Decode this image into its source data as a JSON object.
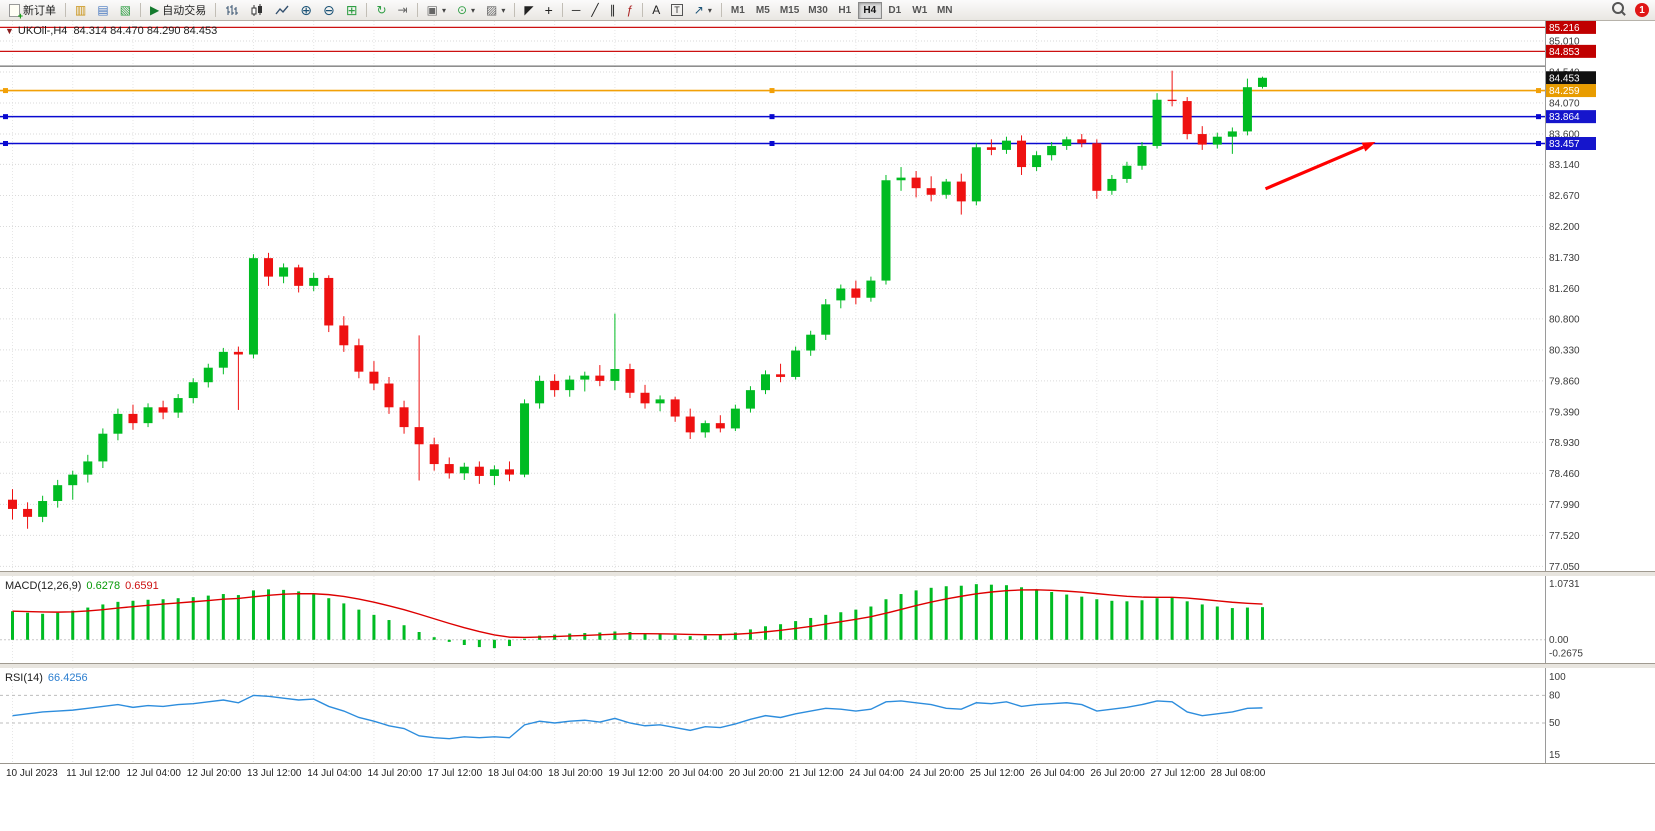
{
  "toolbar": {
    "new_order_label": "新订单",
    "auto_trading_label": "自动交易",
    "timeframes": [
      "M1",
      "M5",
      "M15",
      "M30",
      "H1",
      "H4",
      "D1",
      "W1",
      "MN"
    ],
    "active_timeframe": "H4",
    "notification_count": "1",
    "icons": {
      "one_click": "▼",
      "market_watch": "▥",
      "data_window": "▤",
      "navigator": "▧",
      "play": "▶",
      "zoom_in": "⊕",
      "zoom_out": "⊖",
      "tile_windows": "⊞",
      "auto_scroll": "↻",
      "chart_shift": "⇥",
      "new_chart": "▣",
      "periods": "⊙",
      "templates": "▨",
      "caret": "▾",
      "cursor": "◤",
      "crosshair": "+",
      "hline": "─",
      "trendline": "╱",
      "channel": "∥",
      "fibonacci": "ƒ",
      "text": "A",
      "label": "T",
      "arrows": "↗"
    }
  },
  "chart": {
    "symbol_label": "UKOil-,H4",
    "ohlc": "84.314 84.470 84.290 84.453"
  },
  "chart_data": [
    {
      "type": "candlestick",
      "title": "UKOil-,H4",
      "bull_color": "#00bb22",
      "bear_color": "#ee1111",
      "current_price": 84.453,
      "x_labels": [
        "10 Jul 2023",
        "11 Jul 12:00",
        "12 Jul 04:00",
        "12 Jul 20:00",
        "13 Jul 12:00",
        "14 Jul 04:00",
        "14 Jul 20:00",
        "17 Jul 12:00",
        "18 Jul 04:00",
        "18 Jul 20:00",
        "19 Jul 12:00",
        "20 Jul 04:00",
        "20 Jul 20:00",
        "21 Jul 12:00",
        "24 Jul 04:00",
        "24 Jul 20:00",
        "25 Jul 12:00",
        "26 Jul 04:00",
        "26 Jul 20:00",
        "27 Jul 12:00",
        "28 Jul 08:00"
      ],
      "y_ticks": [
        "85.010",
        "84.540",
        "84.070",
        "83.600",
        "83.140",
        "82.670",
        "82.200",
        "81.730",
        "81.260",
        "80.800",
        "80.330",
        "79.860",
        "79.390",
        "78.930",
        "78.460",
        "77.990",
        "77.520",
        "77.050"
      ],
      "hlines": [
        {
          "price": 85.216,
          "color": "#cc1111",
          "width": 1.3,
          "handles": false
        },
        {
          "price": 84.853,
          "color": "#cc1111",
          "width": 1.3,
          "handles": false
        },
        {
          "price": 84.63,
          "color": "#4a4a4a",
          "width": 1,
          "handles": false
        },
        {
          "price": 84.259,
          "color": "#f2a007",
          "width": 1.6,
          "handles": true
        },
        {
          "price": 83.864,
          "color": "#0a0ad0",
          "width": 1.6,
          "handles": true
        },
        {
          "price": 83.457,
          "color": "#0a0ad0",
          "width": 1.6,
          "handles": true
        }
      ],
      "tags": [
        {
          "text": "85.216",
          "price": 85.216,
          "color": "#c00000"
        },
        {
          "text": "84.853",
          "price": 84.853,
          "color": "#c00000"
        },
        {
          "text": "84.453",
          "price": 84.453,
          "color": "#101010"
        },
        {
          "text": "84.259",
          "price": 84.259,
          "color": "#e89c00"
        },
        {
          "text": "83.864",
          "price": 83.864,
          "color": "#1515cc"
        },
        {
          "text": "83.457",
          "price": 83.457,
          "color": "#1515cc"
        }
      ],
      "arrow": {
        "color": "#ff0000",
        "x_index": [
          83.5,
          90.8
        ],
        "price": [
          82.77,
          83.48
        ]
      },
      "candles": [
        [
          78.06,
          78.22,
          77.76,
          77.92
        ],
        [
          77.92,
          78.02,
          77.62,
          77.8
        ],
        [
          77.8,
          78.12,
          77.72,
          78.04
        ],
        [
          78.04,
          78.36,
          77.94,
          78.28
        ],
        [
          78.28,
          78.5,
          78.06,
          78.44
        ],
        [
          78.44,
          78.74,
          78.32,
          78.64
        ],
        [
          78.64,
          79.14,
          78.54,
          79.06
        ],
        [
          79.06,
          79.44,
          78.96,
          79.36
        ],
        [
          79.36,
          79.5,
          79.12,
          79.22
        ],
        [
          79.22,
          79.52,
          79.16,
          79.46
        ],
        [
          79.46,
          79.56,
          79.28,
          79.38
        ],
        [
          79.38,
          79.66,
          79.3,
          79.6
        ],
        [
          79.6,
          79.9,
          79.52,
          79.84
        ],
        [
          79.84,
          80.12,
          79.76,
          80.06
        ],
        [
          80.06,
          80.36,
          79.96,
          80.3
        ],
        [
          80.3,
          80.38,
          79.42,
          80.26
        ],
        [
          80.26,
          81.78,
          80.2,
          81.72
        ],
        [
          81.72,
          81.8,
          81.3,
          81.44
        ],
        [
          81.44,
          81.64,
          81.34,
          81.58
        ],
        [
          81.58,
          81.62,
          81.2,
          81.3
        ],
        [
          81.3,
          81.5,
          81.22,
          81.42
        ],
        [
          81.42,
          81.46,
          80.6,
          80.7
        ],
        [
          80.7,
          80.84,
          80.3,
          80.4
        ],
        [
          80.4,
          80.5,
          79.9,
          80.0
        ],
        [
          80.0,
          80.16,
          79.72,
          79.82
        ],
        [
          79.82,
          79.92,
          79.36,
          79.46
        ],
        [
          79.46,
          79.56,
          79.06,
          79.16
        ],
        [
          79.16,
          80.55,
          78.35,
          78.9
        ],
        [
          78.9,
          79.0,
          78.5,
          78.6
        ],
        [
          78.6,
          78.7,
          78.38,
          78.46
        ],
        [
          78.46,
          78.62,
          78.36,
          78.56
        ],
        [
          78.56,
          78.64,
          78.3,
          78.42
        ],
        [
          78.42,
          78.58,
          78.28,
          78.52
        ],
        [
          78.52,
          78.64,
          78.34,
          78.44
        ],
        [
          78.44,
          79.58,
          78.4,
          79.52
        ],
        [
          79.52,
          79.94,
          79.44,
          79.86
        ],
        [
          79.86,
          79.96,
          79.62,
          79.72
        ],
        [
          79.72,
          79.94,
          79.62,
          79.88
        ],
        [
          79.88,
          80.0,
          79.7,
          79.94
        ],
        [
          79.94,
          80.1,
          79.78,
          79.86
        ],
        [
          79.86,
          80.88,
          79.72,
          80.04
        ],
        [
          80.04,
          80.12,
          79.6,
          79.68
        ],
        [
          79.68,
          79.8,
          79.44,
          79.52
        ],
        [
          79.52,
          79.64,
          79.4,
          79.58
        ],
        [
          79.58,
          79.62,
          79.24,
          79.32
        ],
        [
          79.32,
          79.44,
          78.98,
          79.08
        ],
        [
          79.08,
          79.26,
          79.0,
          79.22
        ],
        [
          79.22,
          79.34,
          79.08,
          79.14
        ],
        [
          79.14,
          79.5,
          79.1,
          79.44
        ],
        [
          79.44,
          79.78,
          79.38,
          79.72
        ],
        [
          79.72,
          80.02,
          79.66,
          79.96
        ],
        [
          79.96,
          80.12,
          79.84,
          79.92
        ],
        [
          79.92,
          80.38,
          79.88,
          80.32
        ],
        [
          80.32,
          80.62,
          80.24,
          80.56
        ],
        [
          80.56,
          81.1,
          80.48,
          81.02
        ],
        [
          81.08,
          81.32,
          80.96,
          81.26
        ],
        [
          81.26,
          81.38,
          81.02,
          81.12
        ],
        [
          81.12,
          81.44,
          81.06,
          81.38
        ],
        [
          81.38,
          82.98,
          81.32,
          82.9
        ],
        [
          82.9,
          83.1,
          82.74,
          82.94
        ],
        [
          82.94,
          83.04,
          82.64,
          82.78
        ],
        [
          82.78,
          82.96,
          82.58,
          82.68
        ],
        [
          82.68,
          82.92,
          82.62,
          82.88
        ],
        [
          82.88,
          83.0,
          82.38,
          82.58
        ],
        [
          82.58,
          83.46,
          82.52,
          83.4
        ],
        [
          83.4,
          83.52,
          83.28,
          83.36
        ],
        [
          83.36,
          83.56,
          83.3,
          83.5
        ],
        [
          83.5,
          83.58,
          82.98,
          83.1
        ],
        [
          83.1,
          83.34,
          83.04,
          83.28
        ],
        [
          83.28,
          83.48,
          83.2,
          83.42
        ],
        [
          83.42,
          83.56,
          83.36,
          83.52
        ],
        [
          83.52,
          83.6,
          83.4,
          83.46
        ],
        [
          83.46,
          83.52,
          82.62,
          82.74
        ],
        [
          82.74,
          82.98,
          82.68,
          82.92
        ],
        [
          82.92,
          83.18,
          82.86,
          83.12
        ],
        [
          83.12,
          83.48,
          83.06,
          83.42
        ],
        [
          83.42,
          84.22,
          83.38,
          84.12
        ],
        [
          84.12,
          84.56,
          84.02,
          84.1
        ],
        [
          84.1,
          84.16,
          83.52,
          83.6
        ],
        [
          83.6,
          83.72,
          83.36,
          83.44
        ],
        [
          83.44,
          83.62,
          83.38,
          83.56
        ],
        [
          83.56,
          83.7,
          83.3,
          83.64
        ],
        [
          83.64,
          84.44,
          83.58,
          84.31
        ],
        [
          84.314,
          84.47,
          84.29,
          84.453
        ]
      ]
    },
    {
      "type": "macd_histogram",
      "name": "MACD(12,26,9)",
      "value_main": "0.6278",
      "value_signal": "0.6591",
      "histogram_color": "#00bb22",
      "signal_color": "#dd0000",
      "y_ticks": [
        "1.0731",
        "0.00",
        "-0.2675"
      ],
      "values": [
        0.55,
        0.52,
        0.5,
        0.52,
        0.56,
        0.62,
        0.68,
        0.73,
        0.75,
        0.77,
        0.78,
        0.8,
        0.82,
        0.85,
        0.88,
        0.86,
        0.95,
        0.97,
        0.96,
        0.93,
        0.88,
        0.8,
        0.7,
        0.58,
        0.48,
        0.38,
        0.28,
        0.15,
        0.05,
        -0.04,
        -0.1,
        -0.14,
        -0.16,
        -0.12,
        0.02,
        0.08,
        0.1,
        0.12,
        0.13,
        0.14,
        0.16,
        0.15,
        0.12,
        0.11,
        0.09,
        0.07,
        0.08,
        0.1,
        0.14,
        0.2,
        0.26,
        0.3,
        0.36,
        0.42,
        0.48,
        0.53,
        0.58,
        0.64,
        0.78,
        0.88,
        0.95,
        1.0,
        1.03,
        1.04,
        1.07,
        1.06,
        1.05,
        1.01,
        0.97,
        0.92,
        0.87,
        0.83,
        0.78,
        0.75,
        0.74,
        0.76,
        0.8,
        0.82,
        0.74,
        0.68,
        0.64,
        0.61,
        0.62,
        0.6278
      ]
    },
    {
      "type": "line",
      "name": "RSI(14)",
      "value": "66.4256",
      "color": "#2d8ddd",
      "levels": [
        80,
        50
      ],
      "y_ticks": [
        "100",
        "80",
        "50",
        "15"
      ],
      "values": [
        58,
        60,
        62,
        63,
        64,
        66,
        68,
        70,
        67,
        69,
        68,
        70,
        71,
        73,
        75,
        72,
        80,
        79,
        77,
        75,
        76,
        68,
        63,
        56,
        52,
        47,
        44,
        36,
        34,
        33,
        35,
        34,
        35,
        34,
        48,
        52,
        50,
        52,
        53,
        51,
        55,
        50,
        47,
        48,
        45,
        42,
        46,
        45,
        49,
        54,
        58,
        56,
        60,
        63,
        66,
        65,
        63,
        65,
        73,
        74,
        72,
        70,
        66,
        65,
        72,
        71,
        73,
        68,
        70,
        71,
        72,
        70,
        63,
        65,
        67,
        70,
        74,
        73,
        62,
        58,
        60,
        62,
        66,
        66.43
      ]
    }
  ]
}
